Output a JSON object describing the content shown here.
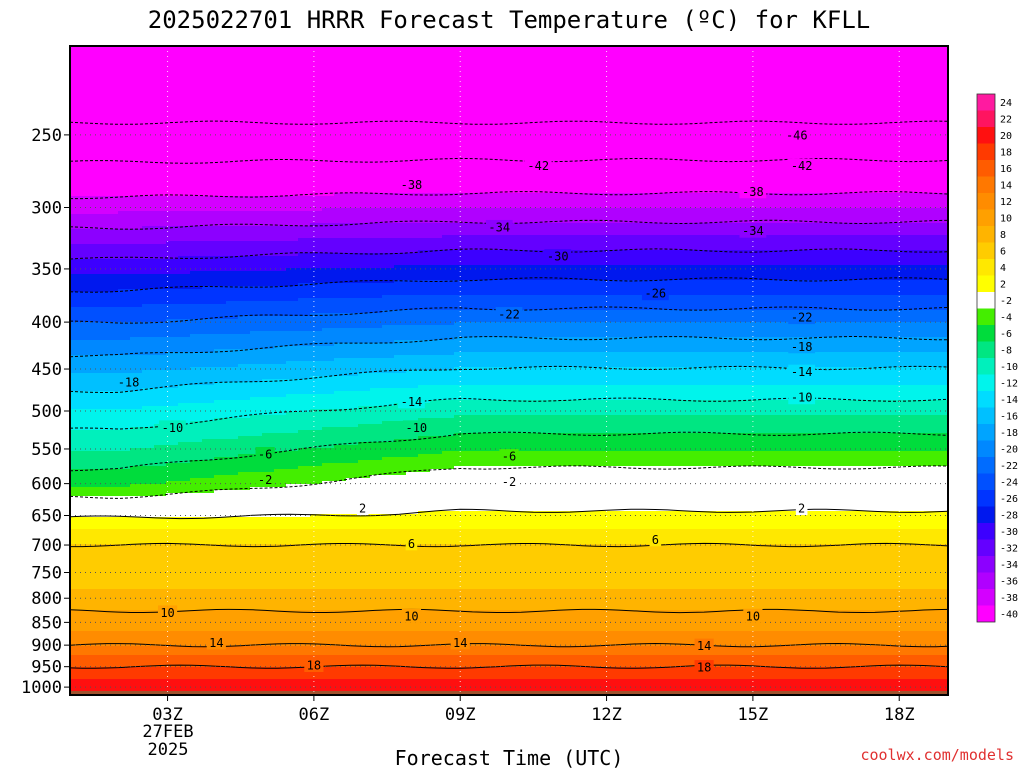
{
  "chart_data": {
    "type": "heatmap",
    "title": "2025022701 HRRR Forecast Temperature (ºC) for KFLL",
    "xlabel": "Forecast Time (UTC)",
    "ylabel": "",
    "x_ticks": [
      "03Z",
      "06Z",
      "09Z",
      "12Z",
      "15Z",
      "18Z"
    ],
    "x_tick_hours": [
      3,
      6,
      9,
      12,
      15,
      18
    ],
    "x_date_label": [
      "27FEB",
      "2025"
    ],
    "xlim_hours": [
      1,
      19
    ],
    "y_ticks": [
      250,
      300,
      350,
      400,
      450,
      500,
      550,
      600,
      650,
      700,
      750,
      800,
      850,
      900,
      950,
      1000
    ],
    "ylim_hPa": [
      1020,
      200
    ],
    "y_scale": "log",
    "grid": "dotted",
    "colorbar": {
      "placement": "right",
      "levels": [
        24,
        22,
        20,
        18,
        16,
        14,
        12,
        10,
        8,
        6,
        4,
        2,
        -2,
        -4,
        -6,
        -8,
        -10,
        -12,
        -14,
        -16,
        -18,
        -20,
        -22,
        -24,
        -26,
        -28,
        -30,
        -32,
        -34,
        -36,
        -38,
        -40
      ],
      "colors": [
        "#ff1aa0",
        "#ff1460",
        "#ff1010",
        "#ff3a00",
        "#ff5c00",
        "#ff7800",
        "#ff8c00",
        "#ffa000",
        "#ffb400",
        "#ffcc00",
        "#ffe800",
        "#ffff00",
        "#ffffff",
        "#44ee00",
        "#00dc3c",
        "#00e682",
        "#00f0bc",
        "#00f4ec",
        "#00dcff",
        "#00c0ff",
        "#00a4ff",
        "#0088ff",
        "#006cff",
        "#0050ff",
        "#0034ff",
        "#0018ee",
        "#3c00ff",
        "#6400ff",
        "#8c00ff",
        "#b000ff",
        "#d400ff",
        "#ff00ff"
      ]
    },
    "contour_labels": [
      {
        "v": "-46",
        "t": 15.9,
        "p": 250
      },
      {
        "v": "-42",
        "t": 10.6,
        "p": 270
      },
      {
        "v": "-42",
        "t": 16.0,
        "p": 270
      },
      {
        "v": "-38",
        "t": 8.0,
        "p": 283
      },
      {
        "v": "-38",
        "t": 15.0,
        "p": 288
      },
      {
        "v": "-34",
        "t": 9.8,
        "p": 315
      },
      {
        "v": "-34",
        "t": 15.0,
        "p": 318
      },
      {
        "v": "-30",
        "t": 11.0,
        "p": 339
      },
      {
        "v": "-26",
        "t": 13.0,
        "p": 372
      },
      {
        "v": "-22",
        "t": 10.0,
        "p": 392
      },
      {
        "v": "-22",
        "t": 16.0,
        "p": 395
      },
      {
        "v": "-18",
        "t": 2.2,
        "p": 465
      },
      {
        "v": "-18",
        "t": 16.0,
        "p": 425
      },
      {
        "v": "-14",
        "t": 8.0,
        "p": 488
      },
      {
        "v": "-14",
        "t": 16.0,
        "p": 453
      },
      {
        "v": "-10",
        "t": 3.1,
        "p": 521
      },
      {
        "v": "-10",
        "t": 8.1,
        "p": 521
      },
      {
        "v": "-10",
        "t": 16.0,
        "p": 483
      },
      {
        "v": "-6",
        "t": 5.0,
        "p": 557
      },
      {
        "v": "-6",
        "t": 10.0,
        "p": 560
      },
      {
        "v": "-2",
        "t": 5.0,
        "p": 594
      },
      {
        "v": "-2",
        "t": 10.0,
        "p": 597
      },
      {
        "v": "2",
        "t": 7.0,
        "p": 638
      },
      {
        "v": "2",
        "t": 16.0,
        "p": 638
      },
      {
        "v": "6",
        "t": 8.0,
        "p": 697
      },
      {
        "v": "6",
        "t": 13.0,
        "p": 690
      },
      {
        "v": "10",
        "t": 3.0,
        "p": 829
      },
      {
        "v": "10",
        "t": 8.0,
        "p": 836
      },
      {
        "v": "10",
        "t": 15.0,
        "p": 836
      },
      {
        "v": "14",
        "t": 4.0,
        "p": 894
      },
      {
        "v": "14",
        "t": 9.0,
        "p": 894
      },
      {
        "v": "14",
        "t": 14.0,
        "p": 901
      },
      {
        "v": "18",
        "t": 6.0,
        "p": 946
      },
      {
        "v": "18",
        "t": 14.0,
        "p": 951
      }
    ],
    "credit": "coolwx.com/models"
  }
}
